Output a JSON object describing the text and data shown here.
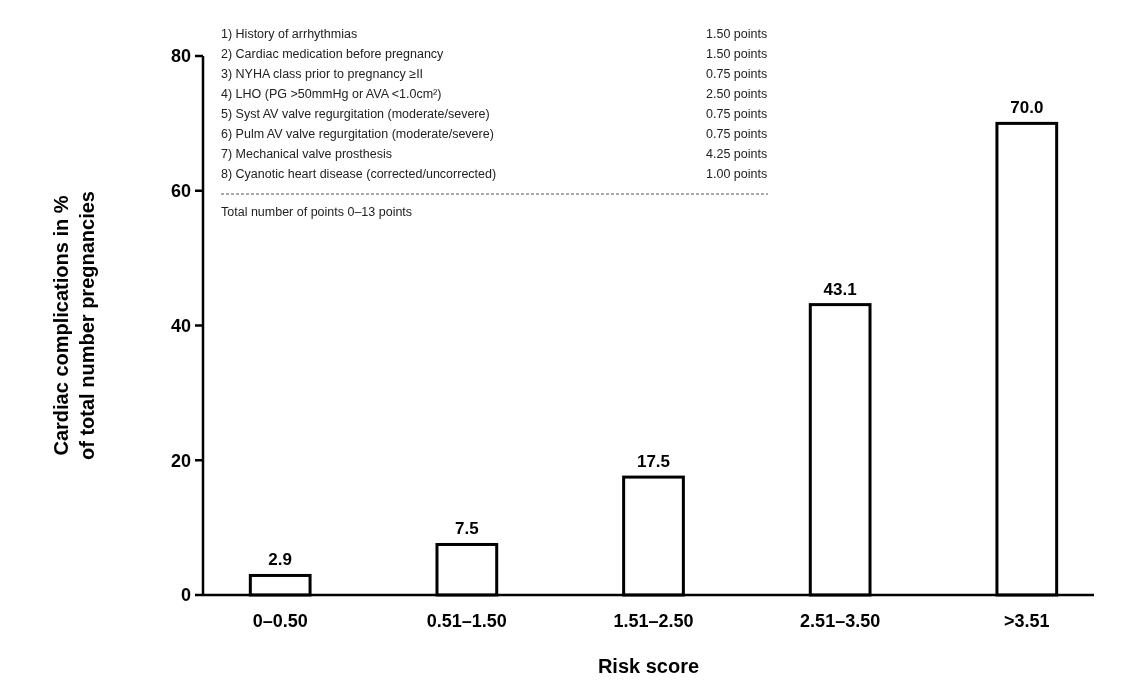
{
  "chart_data": {
    "type": "bar",
    "xlabel": "Risk score",
    "ylabel": "Cardiac complications in %\nof total number pregnancies",
    "categories": [
      "0–0.50",
      "0.51–1.50",
      "1.51–2.50",
      "2.51–3.50",
      ">3.51"
    ],
    "values": [
      2.9,
      7.5,
      17.5,
      43.1,
      70.0
    ],
    "value_labels": [
      "2.9",
      "7.5",
      "17.5",
      "43.1",
      "70.0"
    ],
    "color": "#ffffff",
    "ylim": [
      0,
      80
    ],
    "yticks": [
      0,
      20,
      40,
      60,
      80
    ],
    "annotations": [
      "1) History of arrhythmias",
      "1.50 points",
      "2) Cardiac medication before pregnancy",
      "1.50 points",
      "3) NYHA class prior to pregnancy ≥II",
      "0.75 points",
      "4) LHO (PG >50mmHg or AVA <1.0cm²)",
      "2.50 points",
      "5) Syst AV valve regurgitation (moderate/severe)",
      "0.75 points",
      "6) Pulm AV valve regurgitation (moderate/severe)",
      "0.75 points",
      "7) Mechanical valve prosthesis",
      "4.25 points",
      "8) Cyanotic heart disease (corrected/uncorrected)",
      "1.00 points",
      "Total number of points 0–13 points"
    ]
  }
}
